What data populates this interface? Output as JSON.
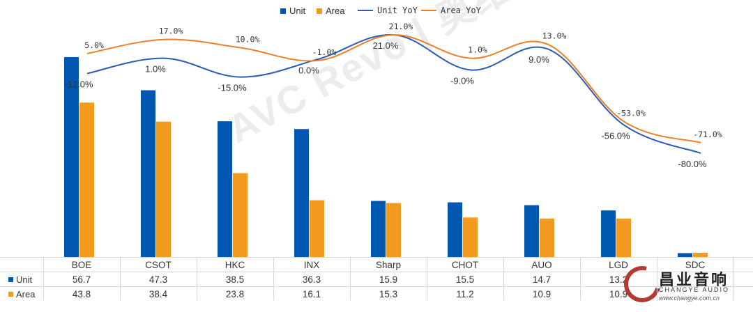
{
  "chart_data": {
    "type": "bar",
    "categories": [
      "BOE",
      "CSOT",
      "HKC",
      "INX",
      "Sharp",
      "CHOT",
      "AUO",
      "LGD",
      "SDC"
    ],
    "series": [
      {
        "name": "Unit",
        "type": "bar",
        "color": "#0057b0",
        "values": [
          56.7,
          47.3,
          38.5,
          36.3,
          15.9,
          15.5,
          14.7,
          13.2,
          1.1
        ]
      },
      {
        "name": "Area",
        "type": "bar",
        "color": "#f39b1e",
        "values": [
          43.8,
          38.4,
          23.8,
          16.1,
          15.3,
          11.2,
          10.9,
          10.9,
          1.2
        ]
      },
      {
        "name": "Unit YoY",
        "type": "line",
        "color": "#2a5bb5",
        "values": [
          -12.0,
          1.0,
          -15.0,
          0.0,
          21.0,
          -9.0,
          9.0,
          -56.0,
          -80.0
        ]
      },
      {
        "name": "Area YoY",
        "type": "line",
        "color": "#f07e26",
        "values": [
          5.0,
          17.0,
          10.0,
          -1.0,
          21.0,
          1.0,
          13.0,
          -53.0,
          -71.0
        ]
      }
    ],
    "value_labels": {
      "Unit YoY": [
        "-12.0%",
        "1.0%",
        "-15.0%",
        "0.0%",
        "21.0%",
        "-9.0%",
        "9.0%",
        "-56.0%",
        "-80.0%"
      ],
      "Area YoY": [
        "5.0%",
        "17.0%",
        "10.0%",
        "-1.0%",
        "21.0%",
        "1.0%",
        "13.0%",
        "-53.0%",
        "-71.0%"
      ]
    },
    "table_rows": [
      {
        "label": "Unit",
        "cells": [
          "56.7",
          "47.3",
          "38.5",
          "36.3",
          "15.9",
          "15.5",
          "14.7",
          "13.2",
          ""
        ]
      },
      {
        "label": "Area",
        "cells": [
          "43.8",
          "38.4",
          "23.8",
          "16.1",
          "15.3",
          "11.2",
          "10.9",
          "10.9",
          ""
        ]
      }
    ],
    "legend_position": "top",
    "grid": false
  },
  "watermark": "AVC Revo | 奥维睿沃",
  "logo": {
    "name": "昌业音响",
    "sub": "CHANGYE AUDIO",
    "url": "www.changye.com.cn"
  }
}
